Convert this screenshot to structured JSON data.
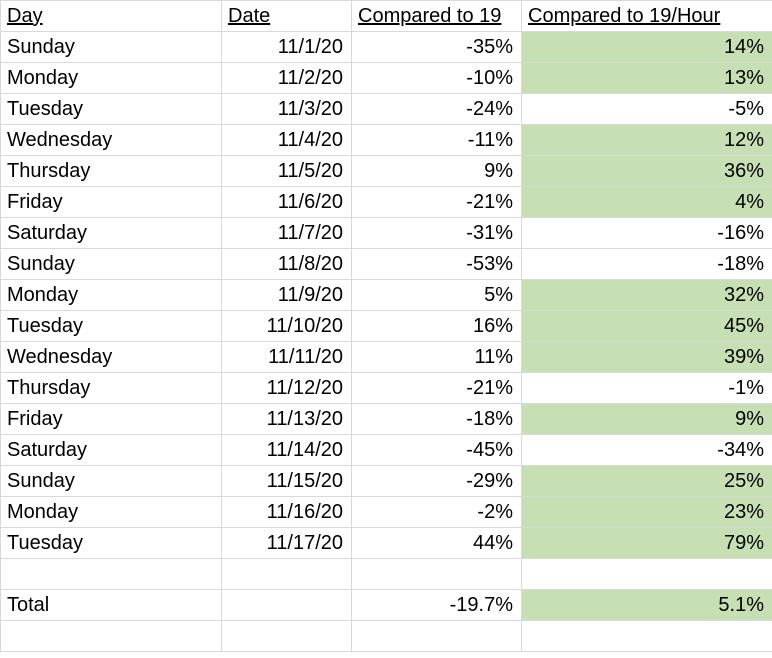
{
  "headers": {
    "day": "Day",
    "date": "Date",
    "cmp": "Compared to 19",
    "cmph": "Compared to 19/Hour"
  },
  "rows": [
    {
      "day": "Sunday",
      "date": "11/1/20",
      "cmp": "-35%",
      "cmph": "14%"
    },
    {
      "day": "Monday",
      "date": "11/2/20",
      "cmp": "-10%",
      "cmph": "13%"
    },
    {
      "day": "Tuesday",
      "date": "11/3/20",
      "cmp": "-24%",
      "cmph": "-5%"
    },
    {
      "day": "Wednesday",
      "date": "11/4/20",
      "cmp": "-11%",
      "cmph": "12%"
    },
    {
      "day": "Thursday",
      "date": "11/5/20",
      "cmp": "9%",
      "cmph": "36%"
    },
    {
      "day": "Friday",
      "date": "11/6/20",
      "cmp": "-21%",
      "cmph": "4%"
    },
    {
      "day": "Saturday",
      "date": "11/7/20",
      "cmp": "-31%",
      "cmph": "-16%"
    },
    {
      "day": "Sunday",
      "date": "11/8/20",
      "cmp": "-53%",
      "cmph": "-18%"
    },
    {
      "day": "Monday",
      "date": "11/9/20",
      "cmp": "5%",
      "cmph": "32%"
    },
    {
      "day": "Tuesday",
      "date": "11/10/20",
      "cmp": "16%",
      "cmph": "45%"
    },
    {
      "day": "Wednesday",
      "date": "11/11/20",
      "cmp": "11%",
      "cmph": "39%"
    },
    {
      "day": "Thursday",
      "date": "11/12/20",
      "cmp": "-21%",
      "cmph": "-1%"
    },
    {
      "day": "Friday",
      "date": "11/13/20",
      "cmp": "-18%",
      "cmph": "9%"
    },
    {
      "day": "Saturday",
      "date": "11/14/20",
      "cmp": "-45%",
      "cmph": "-34%"
    },
    {
      "day": "Sunday",
      "date": "11/15/20",
      "cmp": "-29%",
      "cmph": "25%"
    },
    {
      "day": "Monday",
      "date": "11/16/20",
      "cmp": "-2%",
      "cmph": "23%"
    },
    {
      "day": "Tuesday",
      "date": "11/17/20",
      "cmp": "44%",
      "cmph": "79%"
    }
  ],
  "total": {
    "label": "Total",
    "cmp": "-19.7%",
    "cmph": "5.1%"
  },
  "colors": {
    "positive_text": "#00b050",
    "positive_fill": "#c6e0b4",
    "gridline": "#d9d9d9"
  }
}
